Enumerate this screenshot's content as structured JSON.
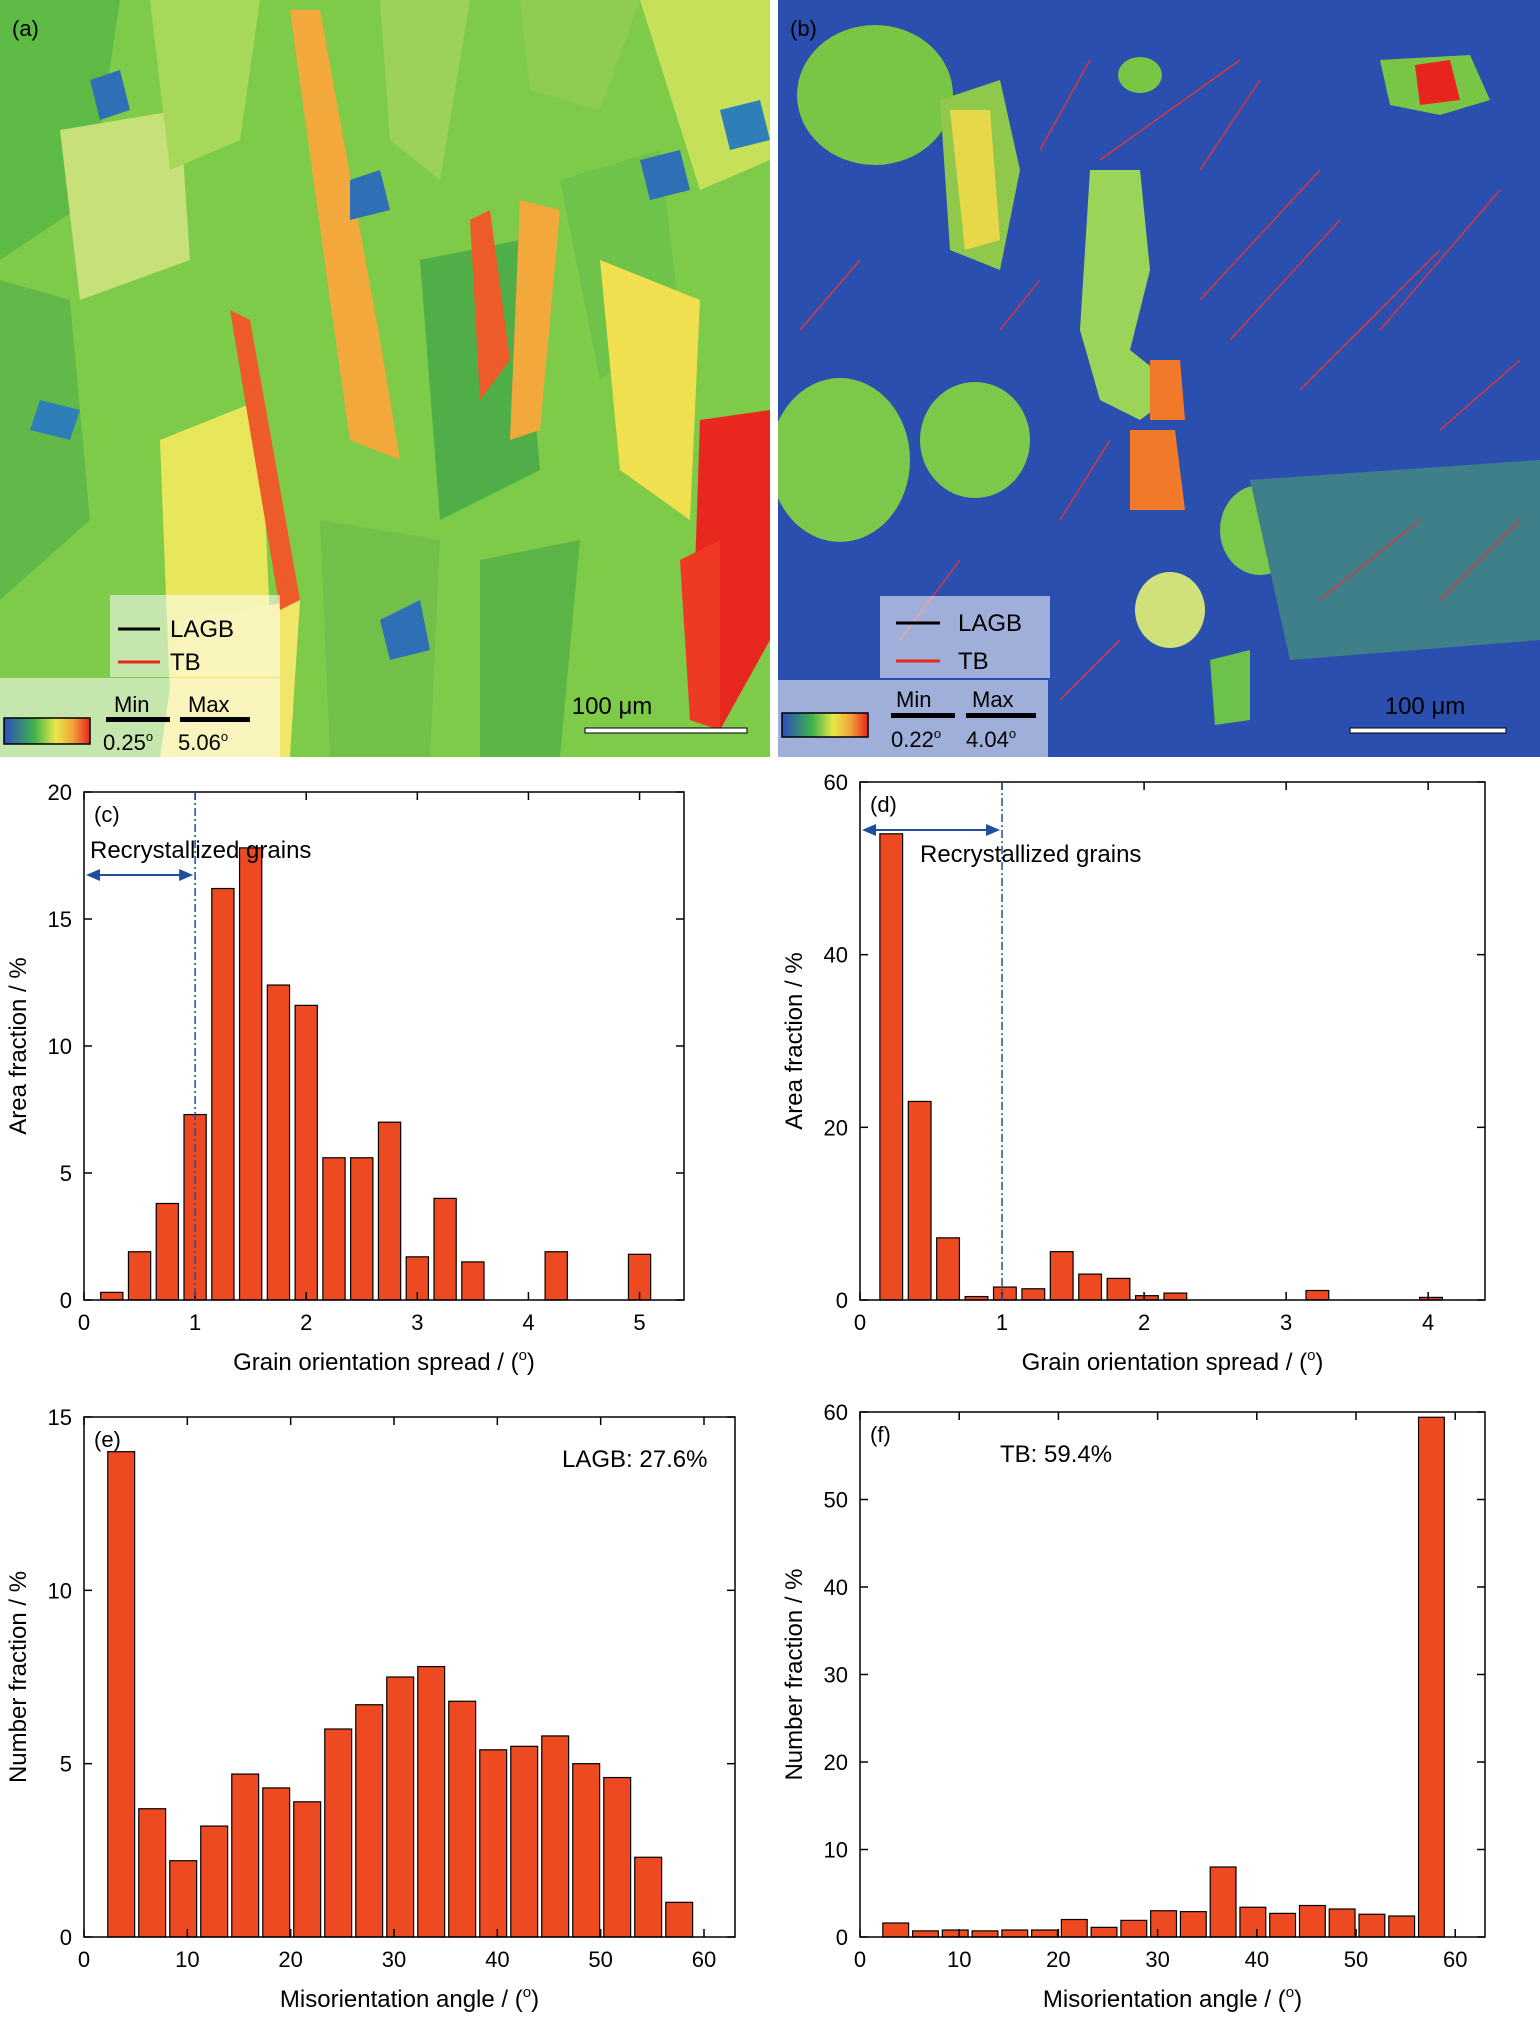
{
  "maps": [
    {
      "panel_label": "(a)",
      "legend": {
        "lagb_label": "LAGB",
        "tb_label": "TB",
        "lagb_color": "#000000",
        "tb_color": "#e82a1e"
      },
      "colorbar": {
        "min_label": "Min",
        "max_label": "Max",
        "min_value": "0.25",
        "max_value": "5.06",
        "unit_symbol": "o"
      },
      "scale_bar": {
        "label_number": "100",
        "label_unit": "μm"
      }
    },
    {
      "panel_label": "(b)",
      "legend": {
        "lagb_label": "LAGB",
        "tb_label": "TB",
        "lagb_color": "#000000",
        "tb_color": "#e82a1e"
      },
      "colorbar": {
        "min_label": "Min",
        "max_label": "Max",
        "min_value": "0.22",
        "max_value": "4.04",
        "unit_symbol": "o"
      },
      "scale_bar": {
        "label_number": "100",
        "label_unit": "μm"
      }
    }
  ],
  "chart_data": [
    {
      "panel_label": "(c)",
      "type": "bar",
      "xlabel": "Grain orientation spread / (o)",
      "ylabel": "Area fraction / %",
      "xlim": [
        0,
        5.4
      ],
      "ylim": [
        0,
        20
      ],
      "xticks": [
        0,
        1,
        2,
        3,
        4,
        5
      ],
      "yticks": [
        0,
        5,
        10,
        15,
        20
      ],
      "bar_width": 0.2,
      "x": [
        0.25,
        0.5,
        0.75,
        1.0,
        1.25,
        1.5,
        1.75,
        2.0,
        2.25,
        2.5,
        2.75,
        3.0,
        3.25,
        3.5,
        4.25,
        5.0
      ],
      "values": [
        0.3,
        1.9,
        3.8,
        7.3,
        16.2,
        17.8,
        12.4,
        11.6,
        5.6,
        5.6,
        7.0,
        1.7,
        4.0,
        1.5,
        1.9,
        1.8
      ],
      "annotation": "Recrystallized grains",
      "threshold_x": 1,
      "annotation_color": "#1f4f9c"
    },
    {
      "panel_label": "(d)",
      "type": "bar",
      "xlabel": "Grain orientation spread / (o)",
      "ylabel": "Area fraction / %",
      "xlim": [
        0,
        4.4
      ],
      "ylim": [
        0,
        60
      ],
      "xticks": [
        0,
        1,
        2,
        3,
        4
      ],
      "yticks": [
        0,
        20,
        40,
        60
      ],
      "bar_width": 0.16,
      "x": [
        0.22,
        0.42,
        0.62,
        0.82,
        1.02,
        1.22,
        1.42,
        1.62,
        1.82,
        2.02,
        2.22,
        3.22,
        4.02
      ],
      "values": [
        54.0,
        23.0,
        7.2,
        0.4,
        1.5,
        1.3,
        5.6,
        3.0,
        2.5,
        0.5,
        0.8,
        1.1,
        0.3
      ],
      "annotation": "Recrystallized grains",
      "threshold_x": 1,
      "annotation_color": "#1f4f9c"
    },
    {
      "panel_label": "(e)",
      "type": "bar",
      "xlabel": "Misorientation angle / (o)",
      "ylabel": "Number fraction / %",
      "xlim": [
        0,
        63
      ],
      "ylim": [
        0,
        15
      ],
      "xticks": [
        0,
        10,
        20,
        30,
        40,
        50,
        60
      ],
      "yticks": [
        0,
        5,
        10,
        15
      ],
      "bar_width": 2.6,
      "x": [
        3.6,
        6.6,
        9.6,
        12.6,
        15.6,
        18.6,
        21.6,
        24.6,
        27.6,
        30.6,
        33.6,
        36.6,
        39.6,
        42.6,
        45.6,
        48.6,
        51.6,
        54.6,
        57.6,
        60.6
      ],
      "values": [
        14.0,
        3.7,
        2.2,
        3.2,
        4.7,
        4.3,
        3.9,
        6.0,
        6.7,
        7.5,
        7.8,
        6.8,
        5.4,
        5.5,
        5.8,
        5.0,
        4.6,
        2.3,
        1.0,
        0
      ],
      "annotation": "LAGB: 27.6%"
    },
    {
      "panel_label": "(f)",
      "type": "bar",
      "xlabel": "Misorientation angle / (o)",
      "ylabel": "Number fraction / %",
      "xlim": [
        0,
        63
      ],
      "ylim": [
        0,
        60
      ],
      "xticks": [
        0,
        10,
        20,
        30,
        40,
        50,
        60
      ],
      "yticks": [
        0,
        10,
        20,
        30,
        40,
        50,
        60
      ],
      "bar_width": 2.6,
      "x": [
        3.6,
        6.6,
        9.6,
        12.6,
        15.6,
        18.6,
        21.6,
        24.6,
        27.6,
        30.6,
        33.6,
        36.6,
        39.6,
        42.6,
        45.6,
        48.6,
        51.6,
        54.6,
        57.6,
        60.6
      ],
      "values": [
        1.6,
        0.7,
        0.8,
        0.7,
        0.8,
        0.8,
        2.0,
        1.1,
        1.9,
        3.0,
        2.9,
        8.0,
        3.4,
        2.7,
        3.6,
        3.2,
        2.6,
        2.4,
        59.4,
        0
      ],
      "annotation": "TB: 59.4%"
    }
  ]
}
